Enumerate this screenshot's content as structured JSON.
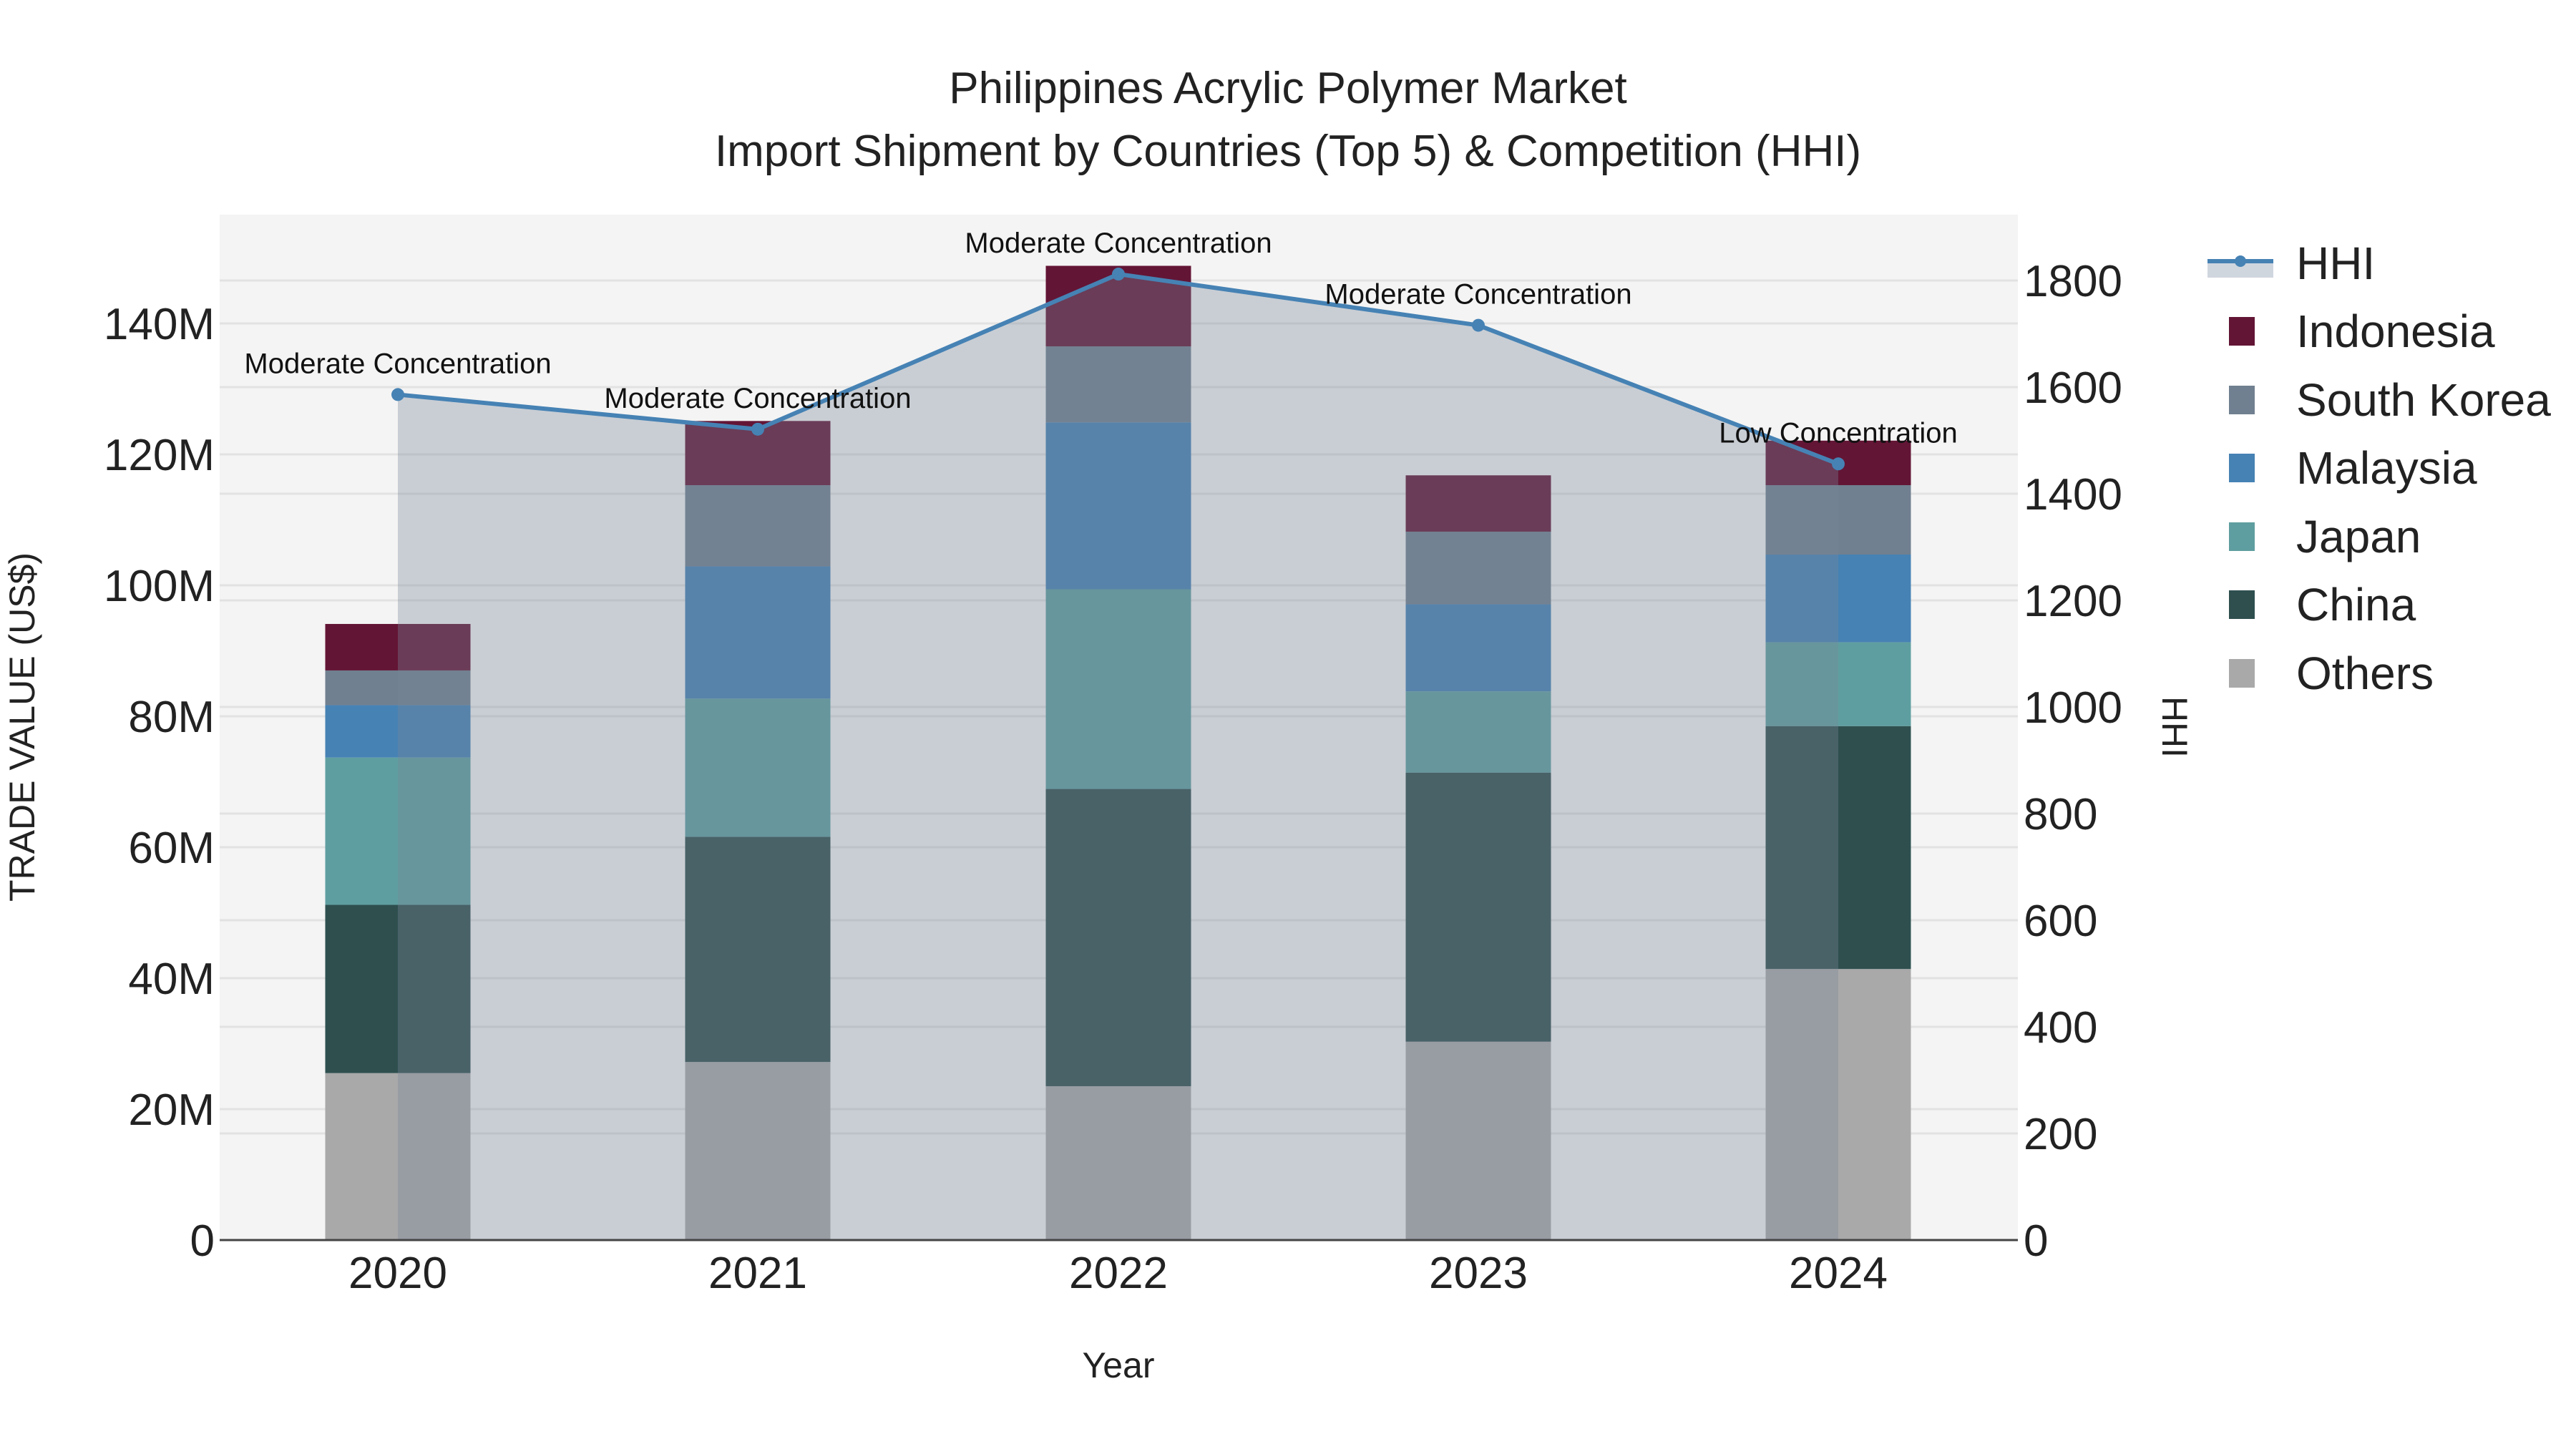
{
  "title": {
    "line1": "Philippines Acrylic Polymer Market",
    "line2": "Import Shipment by Countries (Top 5) & Competition (HHI)"
  },
  "colors": {
    "Indonesia": "#631535",
    "South Korea": "#708090",
    "Malaysia": "#4682b4",
    "Japan": "#5f9ea0",
    "China": "#2f4f4f",
    "Others": "#a9a9a9",
    "hhi_line": "#4682b4",
    "hhi_fill": "rgba(119,136,153,0.35)",
    "plot_bg": "#f4f4f4",
    "grid": "#e2e2e2"
  },
  "legend": {
    "items": [
      {
        "label": "HHI",
        "type": "line"
      },
      {
        "label": "Indonesia",
        "type": "bar"
      },
      {
        "label": "South Korea",
        "type": "bar"
      },
      {
        "label": "Malaysia",
        "type": "bar"
      },
      {
        "label": "Japan",
        "type": "bar"
      },
      {
        "label": "China",
        "type": "bar"
      },
      {
        "label": "Others",
        "type": "bar"
      }
    ]
  },
  "chart_data": {
    "type": "bar",
    "stacked": true,
    "title": "Philippines Acrylic Polymer Market — Import Shipment by Countries (Top 5) & Competition (HHI)",
    "xlabel": "Year",
    "ylabel": "TRADE VALUE (US$)",
    "y2label": "HHI",
    "categories": [
      "2020",
      "2021",
      "2022",
      "2023",
      "2024"
    ],
    "ylim": [
      0,
      155
    ],
    "yticks": [
      "0",
      "20M",
      "40M",
      "60M",
      "80M",
      "100M",
      "120M",
      "140M"
    ],
    "y2lim": [
      0,
      1925
    ],
    "y2ticks": [
      "0",
      "200",
      "400",
      "600",
      "800",
      "1000",
      "1200",
      "1400",
      "1600",
      "1800"
    ],
    "units": "US$ millions",
    "series": [
      {
        "name": "Others",
        "values": [
          25.5,
          27.2,
          23.5,
          30.3,
          41.4
        ]
      },
      {
        "name": "China",
        "values": [
          25.7,
          34.4,
          45.4,
          41.1,
          37.1
        ]
      },
      {
        "name": "Japan",
        "values": [
          22.5,
          21.1,
          30.5,
          12.4,
          12.8
        ]
      },
      {
        "name": "Malaysia",
        "values": [
          8.0,
          20.2,
          25.5,
          13.3,
          13.4
        ]
      },
      {
        "name": "South Korea",
        "values": [
          5.3,
          12.4,
          11.6,
          11.1,
          10.6
        ]
      },
      {
        "name": "Indonesia",
        "values": [
          7.1,
          9.8,
          12.3,
          8.6,
          6.8
        ]
      }
    ],
    "hhi": {
      "name": "HHI",
      "type": "line+area",
      "values": [
        1586,
        1521,
        1812,
        1716,
        1456
      ],
      "annotations": [
        "Moderate Concentration",
        "Moderate Concentration",
        "Moderate Concentration",
        "Moderate Concentration",
        "Low Concentration"
      ]
    },
    "grid": true,
    "legend_position": "right"
  }
}
